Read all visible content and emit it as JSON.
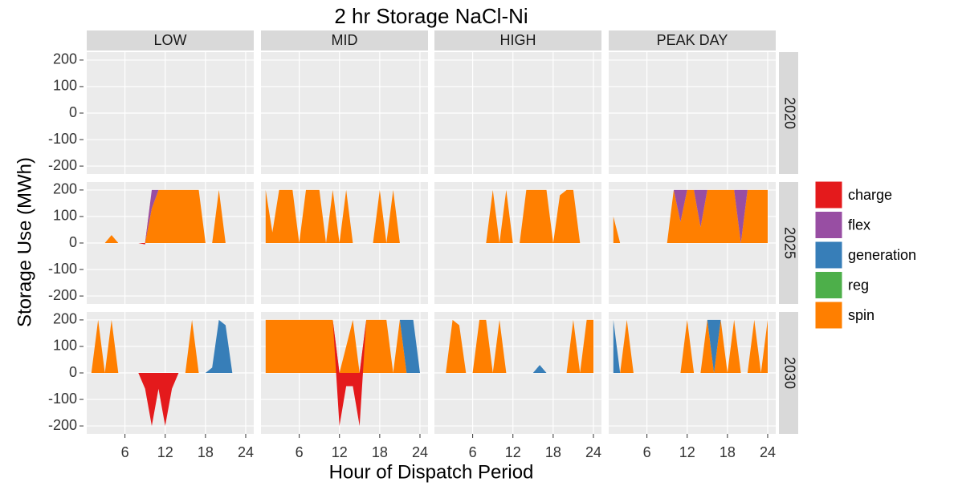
{
  "chart_data": {
    "type": "area",
    "title": "2 hr Storage NaCl-Ni",
    "x_label": "Hour of Dispatch Period",
    "y_label": "Storage Use (MWh)",
    "columns": [
      "LOW",
      "MID",
      "HIGH",
      "PEAK DAY"
    ],
    "rows": [
      "2020",
      "2025",
      "2030"
    ],
    "x": [
      1,
      2,
      3,
      4,
      5,
      6,
      7,
      8,
      9,
      10,
      11,
      12,
      13,
      14,
      15,
      16,
      17,
      18,
      19,
      20,
      21,
      22,
      23,
      24
    ],
    "xlim": [
      0.3,
      25.2
    ],
    "xticks": [
      6,
      12,
      18,
      24
    ],
    "ylim": [
      -230,
      230
    ],
    "yticks": [
      -200,
      -100,
      0,
      100,
      200
    ],
    "grid": true,
    "legend_position": "right",
    "series": [
      {
        "name": "charge",
        "color": "#e41a1c"
      },
      {
        "name": "flex",
        "color": "#984ea3"
      },
      {
        "name": "generation",
        "color": "#377eb8"
      },
      {
        "name": "reg",
        "color": "#4daf4a"
      },
      {
        "name": "spin",
        "color": "#ff7f00"
      }
    ],
    "panels": [
      [
        {
          "series": []
        },
        {
          "series": []
        },
        {
          "series": []
        },
        {
          "series": []
        }
      ],
      [
        {
          "series": [
            {
              "name": "spin",
              "values": [
                0,
                0,
                0,
                30,
                0,
                0,
                0,
                0,
                0,
                130,
                200,
                200,
                200,
                200,
                200,
                200,
                200,
                0,
                0,
                200,
                0,
                0,
                0,
                0
              ]
            },
            {
              "name": "flex",
              "values": [
                0,
                0,
                0,
                0,
                0,
                0,
                0,
                0,
                0,
                70,
                0,
                0,
                0,
                0,
                0,
                0,
                0,
                0,
                0,
                0,
                0,
                0,
                0,
                0
              ]
            },
            {
              "name": "charge",
              "values": [
                0,
                0,
                0,
                0,
                0,
                0,
                0,
                0,
                -5,
                0,
                0,
                0,
                0,
                0,
                0,
                0,
                0,
                0,
                0,
                0,
                0,
                0,
                0,
                0
              ]
            }
          ]
        },
        {
          "series": [
            {
              "name": "spin",
              "values": [
                200,
                40,
                200,
                200,
                200,
                0,
                200,
                200,
                200,
                0,
                200,
                0,
                200,
                0,
                0,
                0,
                0,
                200,
                0,
                200,
                0,
                0,
                0,
                0
              ]
            }
          ]
        },
        {
          "series": [
            {
              "name": "spin",
              "values": [
                0,
                0,
                0,
                0,
                0,
                0,
                0,
                0,
                200,
                0,
                200,
                0,
                0,
                200,
                200,
                200,
                200,
                0,
                180,
                200,
                200,
                0,
                0,
                0
              ]
            }
          ]
        },
        {
          "series": [
            {
              "name": "spin",
              "values": [
                100,
                0,
                0,
                0,
                0,
                0,
                0,
                0,
                0,
                200,
                80,
                200,
                200,
                60,
                200,
                200,
                200,
                200,
                200,
                0,
                200,
                200,
                200,
                200
              ]
            },
            {
              "name": "flex",
              "values": [
                0,
                0,
                0,
                0,
                0,
                0,
                0,
                0,
                0,
                0,
                120,
                0,
                0,
                140,
                0,
                0,
                0,
                0,
                0,
                200,
                0,
                0,
                0,
                0
              ]
            }
          ]
        }
      ],
      [
        {
          "series": [
            {
              "name": "spin",
              "values": [
                0,
                200,
                0,
                200,
                0,
                0,
                0,
                0,
                0,
                0,
                0,
                0,
                0,
                0,
                0,
                200,
                0,
                0,
                0,
                0,
                0,
                0,
                0,
                0
              ]
            },
            {
              "name": "generation",
              "values": [
                0,
                0,
                0,
                0,
                0,
                0,
                0,
                0,
                0,
                0,
                0,
                0,
                0,
                0,
                0,
                0,
                0,
                0,
                20,
                200,
                180,
                0,
                0,
                0
              ]
            },
            {
              "name": "charge",
              "values": [
                0,
                0,
                0,
                0,
                0,
                0,
                0,
                0,
                -60,
                -200,
                -60,
                -200,
                -60,
                0,
                0,
                0,
                0,
                0,
                0,
                0,
                0,
                0,
                0,
                0
              ]
            }
          ]
        },
        {
          "series": [
            {
              "name": "spin",
              "values": [
                200,
                200,
                200,
                200,
                200,
                200,
                200,
                200,
                200,
                200,
                200,
                0,
                100,
                200,
                0,
                200,
                200,
                200,
                200,
                0,
                200,
                0,
                0,
                0
              ]
            },
            {
              "name": "generation",
              "values": [
                0,
                0,
                0,
                0,
                0,
                0,
                0,
                0,
                0,
                0,
                0,
                0,
                0,
                0,
                0,
                0,
                0,
                0,
                0,
                0,
                0,
                200,
                200,
                0
              ]
            },
            {
              "name": "charge",
              "values": [
                0,
                0,
                0,
                0,
                0,
                0,
                0,
                0,
                0,
                0,
                0,
                -200,
                -50,
                -50,
                -200,
                0,
                0,
                0,
                0,
                0,
                0,
                0,
                0,
                0
              ]
            }
          ]
        },
        {
          "series": [
            {
              "name": "spin",
              "values": [
                0,
                0,
                200,
                180,
                0,
                0,
                200,
                200,
                0,
                200,
                0,
                0,
                0,
                0,
                0,
                0,
                0,
                0,
                0,
                0,
                200,
                0,
                200,
                200
              ]
            },
            {
              "name": "generation",
              "values": [
                0,
                0,
                0,
                0,
                0,
                0,
                0,
                0,
                0,
                0,
                0,
                0,
                0,
                0,
                0,
                30,
                0,
                0,
                0,
                0,
                0,
                0,
                0,
                0
              ]
            }
          ]
        },
        {
          "series": [
            {
              "name": "spin",
              "values": [
                0,
                0,
                200,
                0,
                0,
                0,
                0,
                0,
                0,
                0,
                0,
                200,
                0,
                0,
                200,
                0,
                200,
                0,
                200,
                0,
                0,
                200,
                0,
                200
              ]
            },
            {
              "name": "generation",
              "values": [
                200,
                0,
                0,
                0,
                0,
                0,
                0,
                0,
                0,
                0,
                0,
                0,
                0,
                0,
                0,
                200,
                0,
                0,
                0,
                0,
                0,
                0,
                0,
                0
              ]
            }
          ]
        }
      ]
    ]
  }
}
